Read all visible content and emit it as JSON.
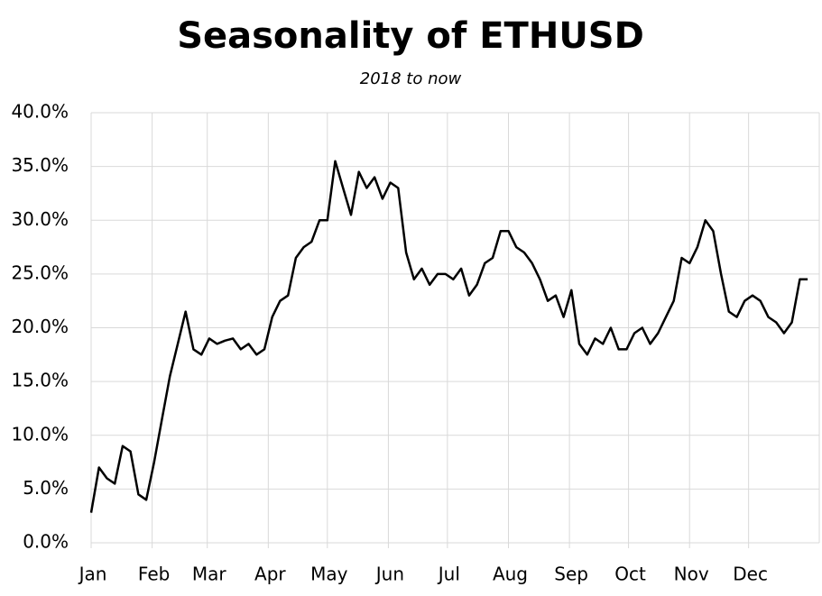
{
  "chart_data": {
    "type": "line",
    "title": "Seasonality of ETHUSD",
    "subtitle": "2018 to now",
    "x": [
      1,
      5,
      9,
      13,
      17,
      21,
      25,
      29,
      33,
      37,
      41,
      45,
      49,
      53,
      57,
      61,
      65,
      69,
      73,
      77,
      81,
      85,
      89,
      93,
      97,
      101,
      105,
      109,
      113,
      117,
      121,
      125,
      129,
      133,
      137,
      141,
      145,
      149,
      153,
      157,
      161,
      165,
      169,
      173,
      177,
      181,
      185,
      189,
      193,
      197,
      201,
      205,
      209,
      213,
      217,
      221,
      225,
      229,
      233,
      237,
      241,
      245,
      249,
      253,
      257,
      261,
      265,
      269,
      273,
      277,
      281,
      285,
      289,
      293,
      297,
      301,
      305,
      309,
      313,
      317,
      321,
      325,
      329,
      333,
      337,
      341,
      345,
      349,
      353,
      357,
      361,
      365
    ],
    "series": [
      {
        "color": "#000000",
        "values": [
          2.8,
          7.0,
          6.0,
          5.5,
          9.0,
          8.5,
          4.5,
          4.0,
          7.5,
          11.5,
          15.5,
          18.5,
          21.5,
          18.0,
          17.5,
          19.0,
          18.5,
          18.8,
          19.0,
          18.0,
          18.5,
          17.5,
          18.0,
          21.0,
          22.5,
          23.0,
          26.5,
          27.5,
          28.0,
          30.0,
          30.0,
          35.5,
          33.0,
          30.5,
          34.5,
          33.0,
          34.0,
          32.0,
          33.5,
          33.0,
          27.0,
          24.5,
          25.5,
          24.0,
          25.0,
          25.0,
          24.5,
          25.5,
          23.0,
          24.0,
          26.0,
          26.5,
          29.0,
          29.0,
          27.5,
          27.0,
          26.0,
          24.5,
          22.5,
          23.0,
          21.0,
          23.5,
          18.5,
          17.5,
          19.0,
          18.5,
          20.0,
          18.0,
          18.0,
          19.5,
          20.0,
          18.5,
          19.5,
          21.0,
          22.5,
          26.5,
          26.0,
          27.5,
          30.0,
          29.0,
          25.0,
          21.5,
          21.0,
          22.5,
          23.0,
          22.5,
          21.0,
          20.5,
          19.5,
          20.5,
          24.5,
          24.5
        ]
      }
    ],
    "xlim": [
      1,
      370
    ],
    "xticks": [
      {
        "value": 1,
        "label": "Jan"
      },
      {
        "value": 32,
        "label": "Feb"
      },
      {
        "value": 60,
        "label": "Mar"
      },
      {
        "value": 91,
        "label": "Apr"
      },
      {
        "value": 121,
        "label": "May"
      },
      {
        "value": 152,
        "label": "Jun"
      },
      {
        "value": 182,
        "label": "Jul"
      },
      {
        "value": 213,
        "label": "Aug"
      },
      {
        "value": 244,
        "label": "Sep"
      },
      {
        "value": 274,
        "label": "Oct"
      },
      {
        "value": 305,
        "label": "Nov"
      },
      {
        "value": 335,
        "label": "Dec"
      }
    ],
    "ylim": [
      0,
      40
    ],
    "yticks": [
      {
        "value": 0,
        "label": "0.0%"
      },
      {
        "value": 5,
        "label": "5.0%"
      },
      {
        "value": 10,
        "label": "10.0%"
      },
      {
        "value": 15,
        "label": "15.0%"
      },
      {
        "value": 20,
        "label": "20.0%"
      },
      {
        "value": 25,
        "label": "25.0%"
      },
      {
        "value": 30,
        "label": "30.0%"
      },
      {
        "value": 35,
        "label": "35.0%"
      },
      {
        "value": 40,
        "label": "40.0%"
      }
    ],
    "grid": true
  }
}
